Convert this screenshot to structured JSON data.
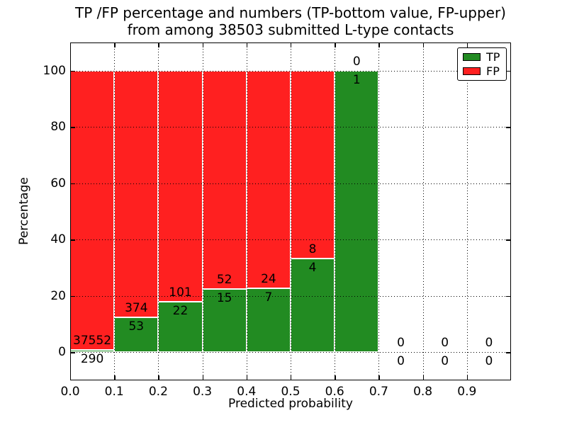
{
  "chart_data": {
    "type": "bar",
    "stacked": true,
    "title_line1": "TP /FP percentage and numbers (TP-bottom value, FP-upper)",
    "title_line2": "from among 38503 submitted L-type contacts",
    "xlabel": "Predicted probability",
    "ylabel": "Percentage",
    "xlim": [
      0.0,
      1.0
    ],
    "ylim": [
      -10,
      110
    ],
    "x_ticks": [
      0.0,
      0.1,
      0.2,
      0.3,
      0.4,
      0.5,
      0.6,
      0.7,
      0.8,
      0.9
    ],
    "x_tick_labels": [
      "0.0",
      "0.1",
      "0.2",
      "0.3",
      "0.4",
      "0.5",
      "0.6",
      "0.7",
      "0.8",
      "0.9"
    ],
    "y_ticks": [
      0,
      20,
      40,
      60,
      80,
      100
    ],
    "y_tick_labels": [
      "0",
      "20",
      "40",
      "60",
      "80",
      "100"
    ],
    "grid": "dotted",
    "total_contacts": 38503,
    "colors": {
      "tp": "#228b22",
      "fp": "#ff2020",
      "grid": "#000000",
      "text": "#000000"
    },
    "legend": {
      "position": "upper-right",
      "entries": [
        {
          "label": "TP",
          "color": "#228b22"
        },
        {
          "label": "FP",
          "color": "#ff2020"
        }
      ]
    },
    "bins": [
      {
        "x_start": 0.0,
        "x_end": 0.1,
        "tp": 290,
        "fp": 37552,
        "tp_pct": 0.77
      },
      {
        "x_start": 0.1,
        "x_end": 0.2,
        "tp": 53,
        "fp": 374,
        "tp_pct": 12.41
      },
      {
        "x_start": 0.2,
        "x_end": 0.3,
        "tp": 22,
        "fp": 101,
        "tp_pct": 17.89
      },
      {
        "x_start": 0.3,
        "x_end": 0.4,
        "tp": 15,
        "fp": 52,
        "tp_pct": 22.39
      },
      {
        "x_start": 0.4,
        "x_end": 0.5,
        "tp": 7,
        "fp": 24,
        "tp_pct": 22.58
      },
      {
        "x_start": 0.5,
        "x_end": 0.6,
        "tp": 4,
        "fp": 8,
        "tp_pct": 33.33
      },
      {
        "x_start": 0.6,
        "x_end": 0.7,
        "tp": 1,
        "fp": 0,
        "tp_pct": 100
      },
      {
        "x_start": 0.7,
        "x_end": 0.8,
        "tp": 0,
        "fp": 0,
        "tp_pct": 0
      },
      {
        "x_start": 0.8,
        "x_end": 0.9,
        "tp": 0,
        "fp": 0,
        "tp_pct": 0
      },
      {
        "x_start": 0.9,
        "x_end": 1.0,
        "tp": 0,
        "fp": 0,
        "tp_pct": 0
      }
    ]
  }
}
